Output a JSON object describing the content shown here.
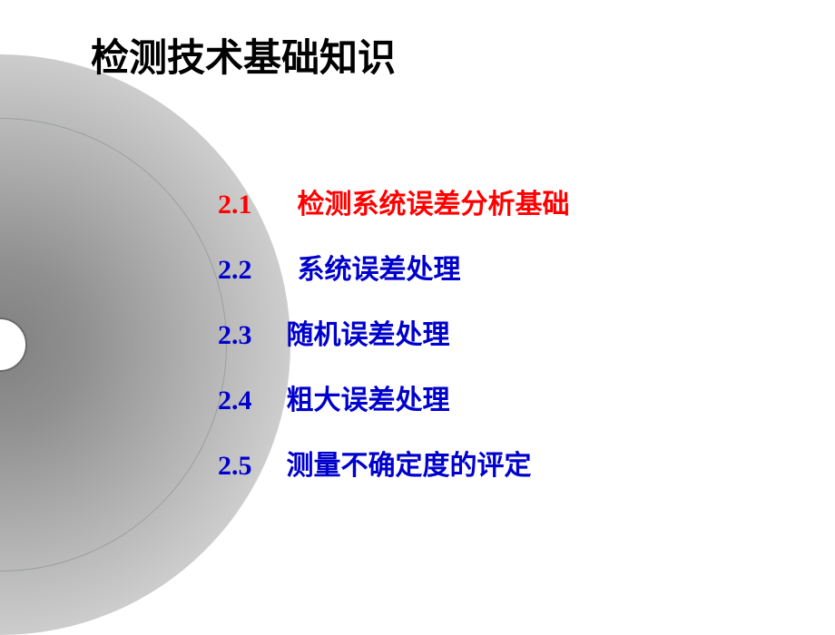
{
  "title": "检测技术基础知识",
  "toc": [
    {
      "number": "2.1",
      "text": "检测系统误差分析基础",
      "color": "red",
      "indent": false
    },
    {
      "number": "2.2",
      "text": "系统误差处理",
      "color": "blue",
      "indent": false
    },
    {
      "number": "2.3",
      "text": "随机误差处理",
      "color": "blue",
      "indent": true
    },
    {
      "number": "2.4",
      "text": "粗大误差处理",
      "color": "blue",
      "indent": true
    },
    {
      "number": "2.5",
      "text": "测量不确定度的评定",
      "color": "blue",
      "indent": true
    }
  ],
  "colors": {
    "red": "#ff0000",
    "blue": "#0000cc",
    "title": "#000000",
    "background": "#ffffff"
  },
  "fonts": {
    "title_size": 42,
    "toc_size": 30
  }
}
